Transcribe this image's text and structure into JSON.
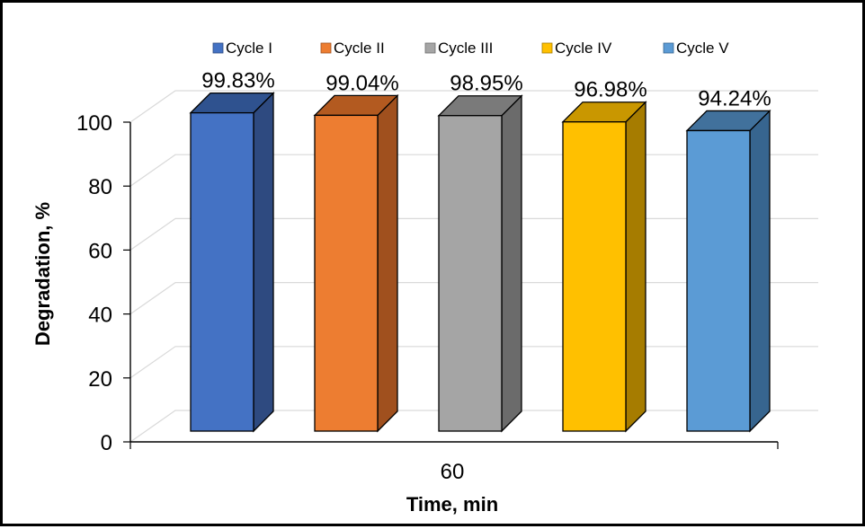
{
  "chart_data": {
    "type": "bar",
    "categories": [
      "60"
    ],
    "series": [
      {
        "name": "Cycle I",
        "values": [
          99.83
        ],
        "label": "99.83%",
        "color": "#4472C4",
        "side_color": "#2E4A80",
        "top_color": "#2F528F"
      },
      {
        "name": "Cycle II",
        "values": [
          99.04
        ],
        "label": "99.04%",
        "color": "#ED7D31",
        "side_color": "#A0501E",
        "top_color": "#B35A20"
      },
      {
        "name": "Cycle III",
        "values": [
          98.95
        ],
        "label": "98.95%",
        "color": "#A5A5A5",
        "side_color": "#6B6B6B",
        "top_color": "#7A7A7A"
      },
      {
        "name": "Cycle IV",
        "values": [
          96.98
        ],
        "label": "96.98%",
        "color": "#FFC000",
        "side_color": "#A67C00",
        "top_color": "#C99700"
      },
      {
        "name": "Cycle V",
        "values": [
          94.24
        ],
        "label": "94.24%",
        "color": "#5B9BD5",
        "side_color": "#37658F",
        "top_color": "#41719C"
      }
    ],
    "title": "",
    "xlabel": "Time, min",
    "ylabel": "Degradation, %",
    "ylim": [
      0,
      100
    ],
    "yticks": [
      "0",
      "20",
      "40",
      "60",
      "80",
      "100"
    ],
    "grid": true,
    "legend": "top"
  }
}
